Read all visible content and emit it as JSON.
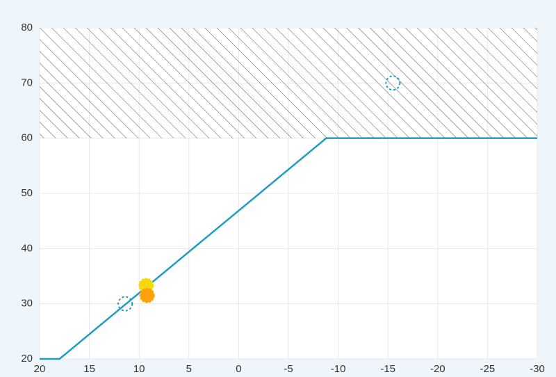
{
  "chart_data": {
    "type": "line",
    "xlim": [
      20,
      -30
    ],
    "ylim": [
      20,
      80
    ],
    "xticks": [
      20,
      15,
      10,
      5,
      0,
      -5,
      -10,
      -15,
      -20,
      -25,
      -30
    ],
    "yticks": [
      20,
      30,
      40,
      50,
      60,
      70,
      80
    ],
    "grid": true,
    "hatched_region": {
      "ymin": 60,
      "ymax": 80
    },
    "series": [
      {
        "color": "#1f9bc4",
        "x": [
          20,
          18,
          -8.8,
          -30
        ],
        "values": [
          20,
          20,
          60,
          60
        ]
      }
    ],
    "points": [
      {
        "style": "dashed",
        "color": "#1f9bc4",
        "x": [
          11.4,
          -15.5
        ],
        "values": [
          30,
          70
        ]
      },
      {
        "style": "filled",
        "color": "#f5d90a",
        "x": [
          9.3
        ],
        "values": [
          33.3
        ]
      },
      {
        "style": "filled",
        "color": "#ffa10a",
        "x": [
          9.2
        ],
        "values": [
          31.5
        ]
      }
    ]
  }
}
